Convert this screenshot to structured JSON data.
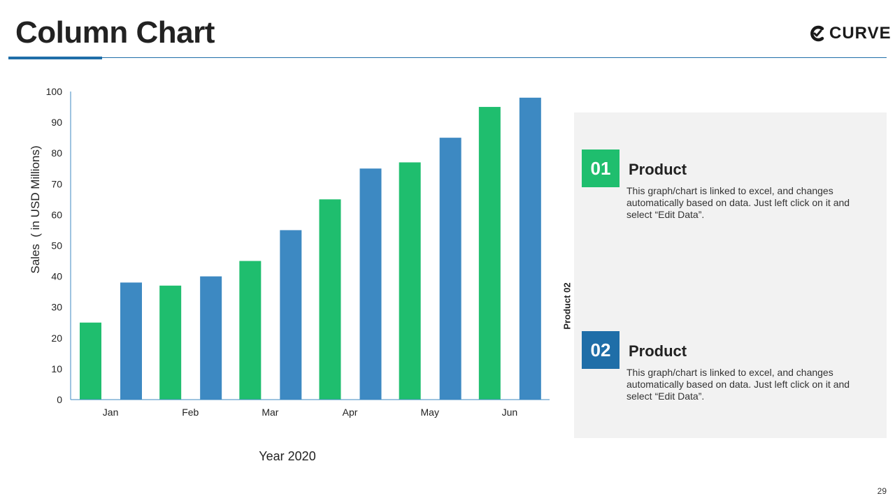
{
  "slide": {
    "title": "Column Chart",
    "logo": {
      "text": "CURVE",
      "icon": "curve-logo-icon"
    },
    "page_number": "29",
    "accent_color": "#1f6ea8"
  },
  "chart_data": {
    "type": "bar",
    "title": "",
    "xlabel": "Year 2020",
    "ylabel": "Sales  ( in USD Millions)",
    "ylim": [
      0,
      100
    ],
    "yticks": [
      0,
      10,
      20,
      30,
      40,
      50,
      60,
      70,
      80,
      90,
      100
    ],
    "categories": [
      "Jan",
      "Feb",
      "Mar",
      "Apr",
      "May",
      "Jun"
    ],
    "series": [
      {
        "color": "#1fbe6e",
        "values": [
          25,
          37,
          45,
          65,
          77,
          95
        ]
      },
      {
        "color": "#3d89c2",
        "values": [
          38,
          40,
          55,
          75,
          85,
          98
        ]
      }
    ],
    "grid": false,
    "legend": "none"
  },
  "panel": {
    "side_label": "Product 02",
    "cards": [
      {
        "number": "01",
        "title": "Product",
        "description": "This graph/chart is linked to excel, and changes automatically based on data. Just left click on it and select “Edit Data”.",
        "color": "#1fbe6e"
      },
      {
        "number": "02",
        "title": "Product",
        "description": "This graph/chart is linked to excel, and changes automatically based on data. Just left click on it and select “Edit Data”.",
        "color": "#1f6ea8"
      }
    ]
  }
}
